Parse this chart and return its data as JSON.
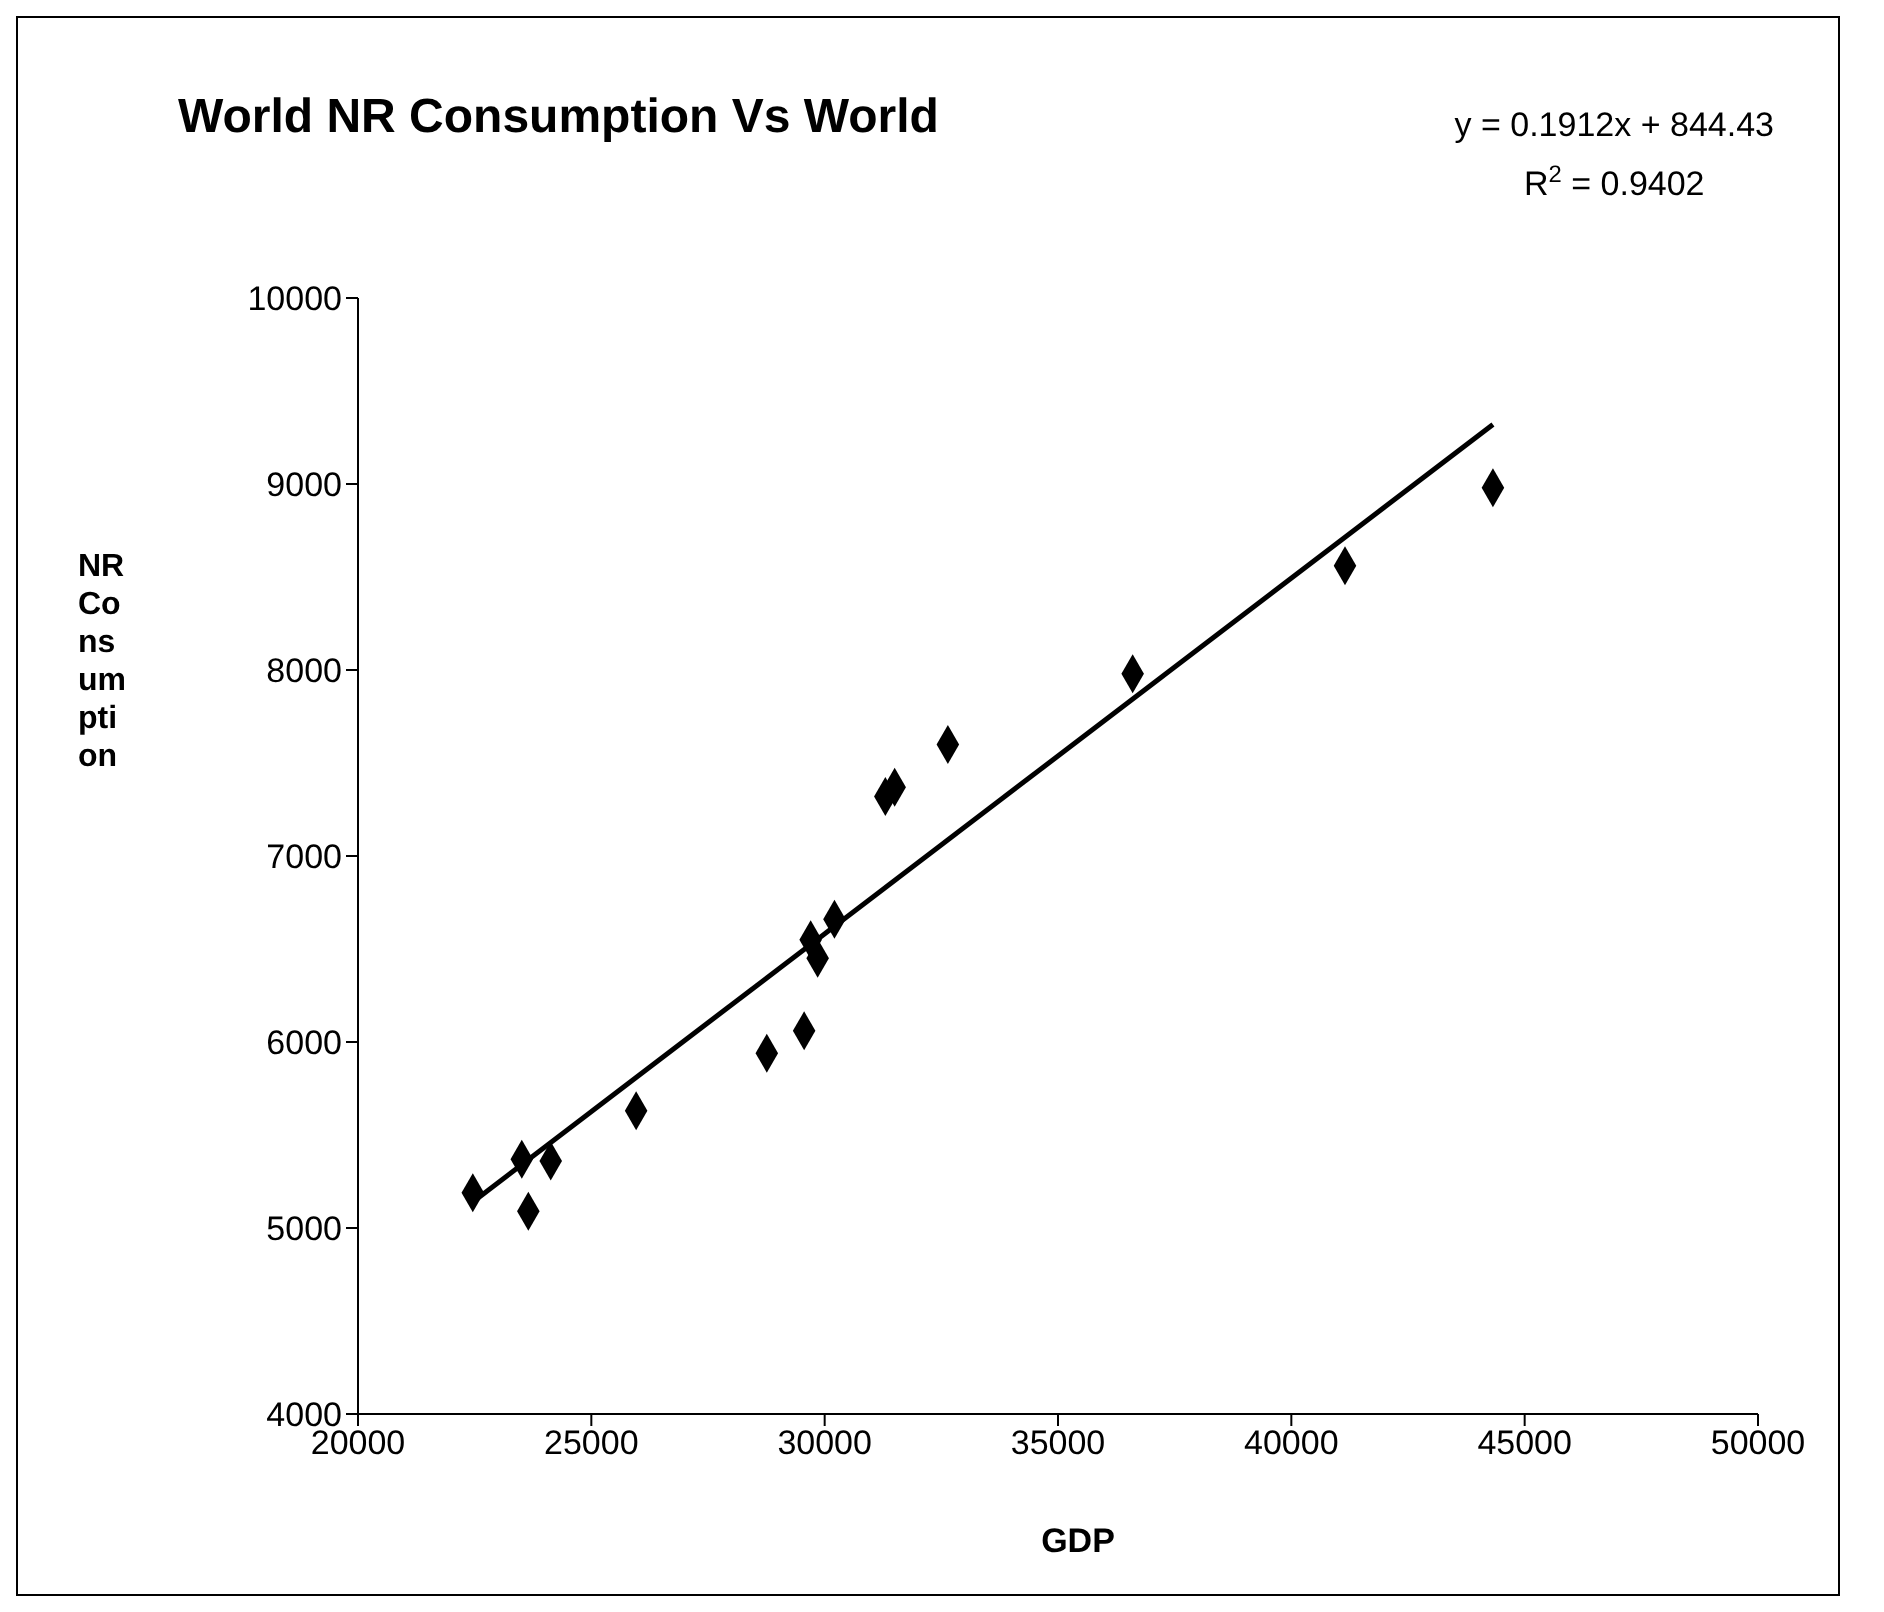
{
  "chart_data": {
    "type": "scatter",
    "title": "World NR Consumption Vs World",
    "xlabel": "GDP",
    "ylabel": "NR Consumption",
    "annotations": [
      "y = 0.1912x + 844.43",
      "R$^{2}$ = 0.9402"
    ],
    "series": [
      {
        "type": "scatter",
        "color": "#000000",
        "marker": "diamond",
        "x": [
          22460,
          23510,
          23650,
          24130,
          25960,
          28760,
          29560,
          29700,
          29850,
          30210,
          31300,
          31500,
          32640,
          36600,
          41150,
          44320
        ],
        "values": [
          5190,
          5370,
          5090,
          5360,
          5630,
          5940,
          6060,
          6550,
          6450,
          6660,
          7320,
          7370,
          7600,
          7980,
          8560,
          8980
        ]
      },
      {
        "type": "line",
        "color": "#000000",
        "marker": "none",
        "line_style": "solid",
        "x": [
          22460,
          44320
        ],
        "values": [
          5140,
          9320
        ]
      }
    ],
    "xlim": [
      20000,
      50000
    ],
    "xticks": [
      20000,
      25000,
      30000,
      35000,
      40000,
      45000,
      50000
    ],
    "ylim": [
      4000,
      10000
    ],
    "yticks": [
      4000,
      5000,
      6000,
      7000,
      8000,
      9000,
      10000
    ],
    "grid": false,
    "legend": false
  }
}
